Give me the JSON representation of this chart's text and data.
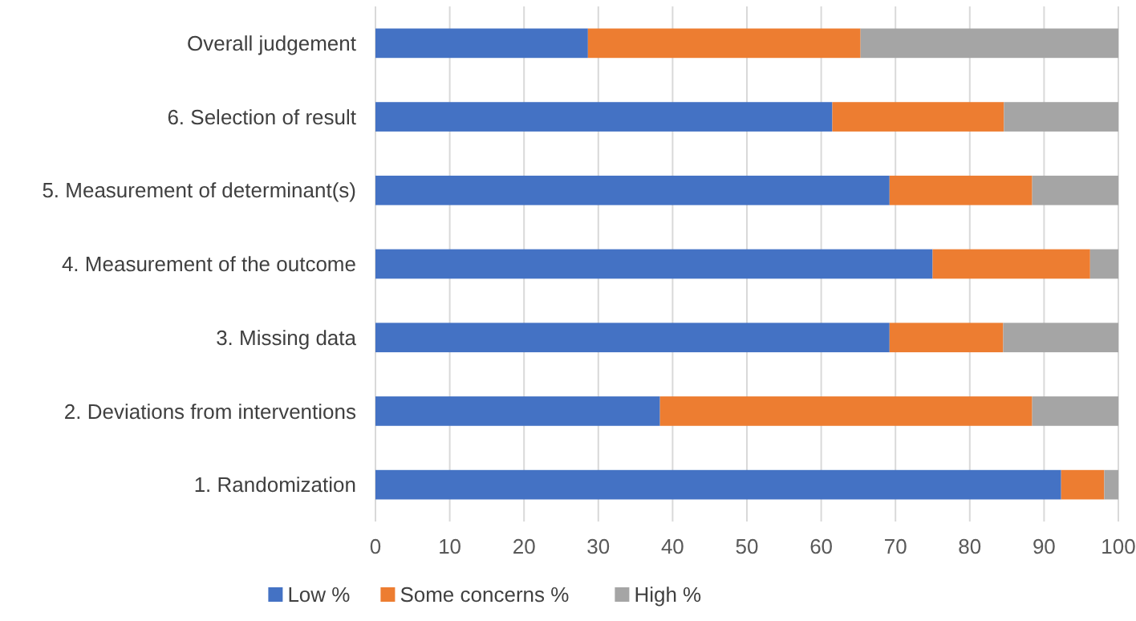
{
  "chart_data": {
    "type": "bar",
    "orientation": "horizontal",
    "stacked": true,
    "categories": [
      "Overall judgement",
      "6. Selection of result",
      "5. Measurement of determinant(s)",
      "4. Measurement of the outcome",
      "3. Missing data",
      "2. Deviations from interventions",
      "1. Randomization"
    ],
    "series": [
      {
        "name": "Low %",
        "color": "#4472c4",
        "values": [
          28.6,
          61.5,
          69.2,
          75,
          69.2,
          38.3,
          92.3
        ]
      },
      {
        "name": "Some concerns %",
        "color": "#ed7d31",
        "values": [
          36.7,
          23.1,
          19.2,
          21.2,
          15.3,
          50.1,
          5.8
        ]
      },
      {
        "name": "High %",
        "color": "#a5a5a5",
        "values": [
          34.7,
          15.4,
          11.6,
          3.8,
          15.5,
          11.6,
          1.9
        ]
      }
    ],
    "xlim": [
      0,
      100
    ],
    "xticks": [
      0,
      10,
      20,
      30,
      40,
      50,
      60,
      70,
      80,
      90,
      100
    ],
    "grid": "x",
    "legend": "bottom"
  }
}
